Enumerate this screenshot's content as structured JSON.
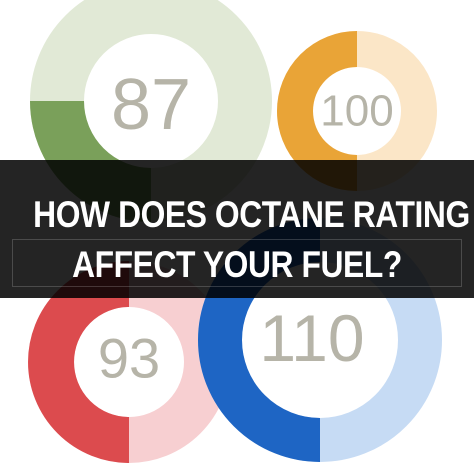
{
  "rating_badges": [
    {
      "label": "87",
      "track_color": "#e1e9d6",
      "accent_color": "#7aa05a",
      "fill_fraction": 0.25
    },
    {
      "label": "100",
      "track_color": "#fbe6c7",
      "accent_color": "#e9a437",
      "fill_fraction": 0.5
    },
    {
      "label": "93",
      "track_color": "#f7cfd1",
      "accent_color": "#dc4b4e",
      "fill_fraction": 0.5
    },
    {
      "label": "110",
      "track_color": "#c6dbf4",
      "accent_color": "#1e65c4",
      "fill_fraction": 0.5
    }
  ],
  "banner": {
    "line1": "HOW DOES OCTANE RATING",
    "line2": "AFFECT YOUR FUEL?",
    "background": "#000000",
    "text_color": "#ffffff"
  }
}
